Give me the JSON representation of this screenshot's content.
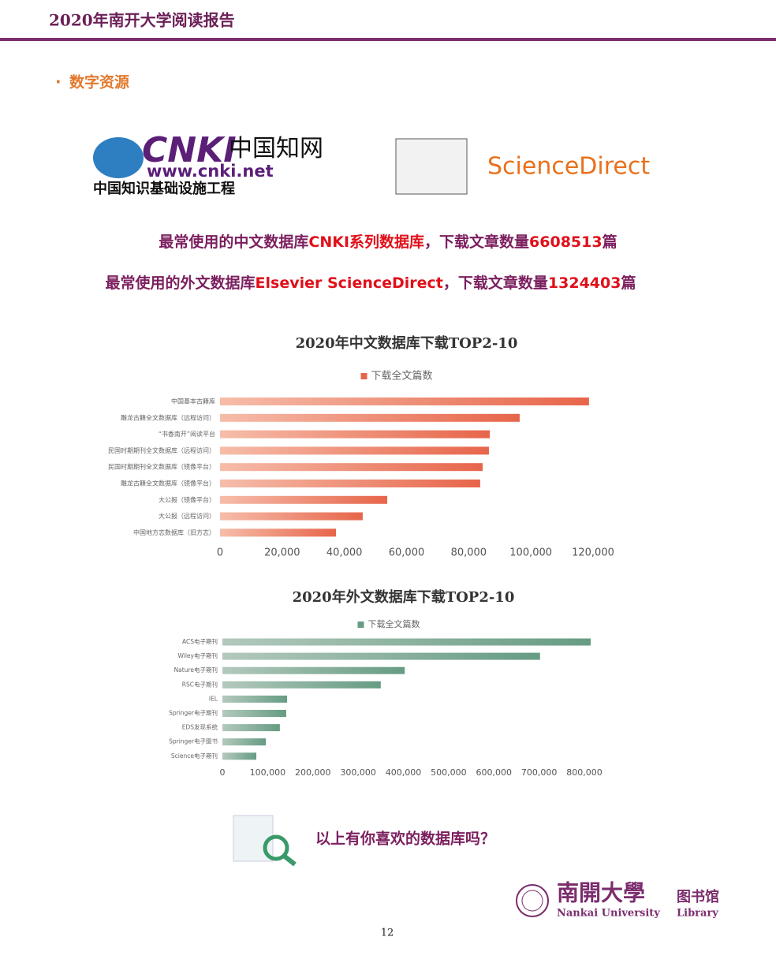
{
  "header": {
    "title": "2020年南开大学阅读报告"
  },
  "section": {
    "bullet": "·",
    "title": "数字资源"
  },
  "logos": {
    "cnki": {
      "mark": "CNKI",
      "cn": "中国知网",
      "url": "www.cnki.net",
      "sub": "中国知识基础设施工程"
    },
    "sd": {
      "name": "ScienceDirect"
    }
  },
  "headlines": [
    {
      "segments": [
        {
          "text": "最常使用的中文数据库",
          "color": "#7b1f5e"
        },
        {
          "text": "CNKI系列数据库",
          "color": "#e0101a"
        },
        {
          "text": "，下载文章数量",
          "color": "#7b1f5e"
        },
        {
          "text": "6608513",
          "color": "#e0101a"
        },
        {
          "text": "篇",
          "color": "#7b1f5e"
        }
      ]
    },
    {
      "segments": [
        {
          "text": "最常使用的外文数据库",
          "color": "#7b1f5e"
        },
        {
          "text": "Elsevier ScienceDirect",
          "color": "#e0101a"
        },
        {
          "text": "，下载文章数量",
          "color": "#7b1f5e"
        },
        {
          "text": "1324403",
          "color": "#e0101a"
        },
        {
          "text": "篇",
          "color": "#7b1f5e"
        }
      ]
    }
  ],
  "chart_data": [
    {
      "type": "bar",
      "orientation": "horizontal",
      "title": "2020年中文数据库下载TOP2-10",
      "legend": "下载全文篇数",
      "color": [
        "#f6bdaa",
        "#e7654a"
      ],
      "categories": [
        "中国基本古籍库",
        "雕龙古籍全文数据库（远程访问）",
        "“书香南开”阅读平台",
        "民国时期期刊全文数据库（远程访问）",
        "民国时期期刊全文数据库（镜像平台）",
        "雕龙古籍全文数据库（镜像平台）",
        "大公报（镜像平台）",
        "大公报（远程访问）",
        "中国地方志数据库（旧方志）"
      ],
      "values": [
        118700,
        96400,
        86800,
        86500,
        84500,
        83700,
        53800,
        45900,
        37300
      ],
      "xlim": [
        0,
        120000
      ],
      "xticks": [
        0,
        {
          "value": 20000,
          "label": "20,000"
        },
        {
          "value": 40000,
          "label": "40,000"
        },
        {
          "value": 60000,
          "label": "60,000"
        },
        {
          "value": 80000,
          "label": "80,000"
        },
        {
          "value": 100000,
          "label": "100,000"
        },
        {
          "value": 120000,
          "label": "120,000"
        }
      ]
    },
    {
      "type": "bar",
      "orientation": "horizontal",
      "title": "2020年外文数据库下载TOP2-10",
      "legend": "下载全文篇数",
      "color": [
        "#b3c9bd",
        "#669c83"
      ],
      "categories": [
        "ACS电子期刊",
        "Wiley电子期刊",
        "Nature电子期刊",
        "RSC电子期刊",
        "IEL",
        "Springer电子期刊",
        "EDS发现系统",
        "Springer电子图书",
        "Science电子期刊"
      ],
      "values": [
        814000,
        702000,
        403000,
        350000,
        143000,
        141000,
        127000,
        96000,
        75000
      ],
      "xlim": [
        0,
        800000
      ],
      "xticks": [
        0,
        {
          "value": 100000,
          "label": "100,000"
        },
        {
          "value": 200000,
          "label": "200,000"
        },
        {
          "value": 300000,
          "label": "300,000"
        },
        {
          "value": 400000,
          "label": "400,000"
        },
        {
          "value": 500000,
          "label": "500,000"
        },
        {
          "value": 600000,
          "label": "600,000"
        },
        {
          "value": 700000,
          "label": "700,000"
        },
        {
          "value": 800000,
          "label": "800,000"
        }
      ]
    }
  ],
  "question": "以上有你喜欢的数据库吗？",
  "footer": {
    "school_cn": "南開大學",
    "library_cn": "图书馆",
    "school_en": "Nankai University",
    "library_en": "Library",
    "page": "12"
  }
}
